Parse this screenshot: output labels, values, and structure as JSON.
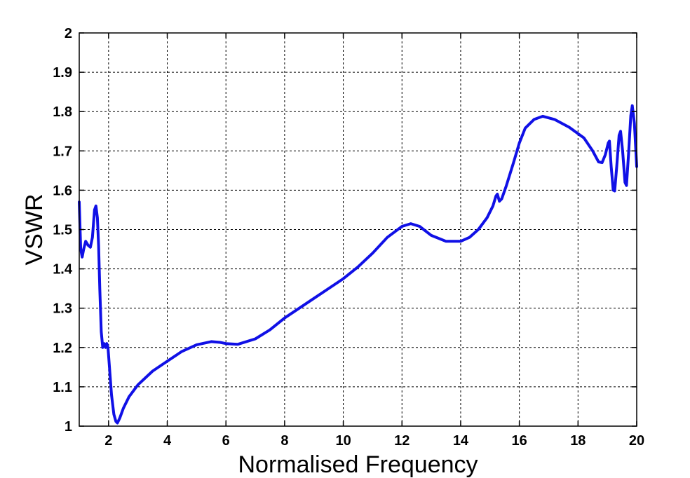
{
  "chart_data": {
    "type": "line",
    "title": "",
    "xlabel": "Normalised Frequency",
    "ylabel": "VSWR",
    "xlim": [
      1,
      20
    ],
    "ylim": [
      1,
      2
    ],
    "xticks": [
      2,
      4,
      6,
      8,
      10,
      12,
      14,
      16,
      18,
      20
    ],
    "yticks": [
      1,
      1.1,
      1.2,
      1.3,
      1.4,
      1.5,
      1.6,
      1.7,
      1.8,
      1.9,
      2
    ],
    "ytick_labels": [
      "1",
      "1.1",
      "1.2",
      "1.3",
      "1.4",
      "1.5",
      "1.6",
      "1.7",
      "1.8",
      "1.9",
      "2"
    ],
    "xtick_labels": [
      "2",
      "4",
      "6",
      "8",
      "10",
      "12",
      "14",
      "16",
      "18",
      "20"
    ],
    "grid": true,
    "line_color": "#1010e6",
    "series": [
      {
        "points": [
          [
            1.0,
            1.57
          ],
          [
            1.05,
            1.45
          ],
          [
            1.1,
            1.43
          ],
          [
            1.15,
            1.45
          ],
          [
            1.22,
            1.47
          ],
          [
            1.3,
            1.46
          ],
          [
            1.38,
            1.455
          ],
          [
            1.45,
            1.48
          ],
          [
            1.52,
            1.55
          ],
          [
            1.57,
            1.56
          ],
          [
            1.62,
            1.53
          ],
          [
            1.66,
            1.46
          ],
          [
            1.7,
            1.35
          ],
          [
            1.75,
            1.24
          ],
          [
            1.8,
            1.2
          ],
          [
            1.85,
            1.21
          ],
          [
            1.9,
            1.2
          ],
          [
            1.94,
            1.21
          ],
          [
            1.98,
            1.2
          ],
          [
            2.03,
            1.15
          ],
          [
            2.1,
            1.08
          ],
          [
            2.18,
            1.03
          ],
          [
            2.25,
            1.012
          ],
          [
            2.3,
            1.008
          ],
          [
            2.38,
            1.02
          ],
          [
            2.5,
            1.045
          ],
          [
            2.7,
            1.075
          ],
          [
            3.0,
            1.105
          ],
          [
            3.5,
            1.14
          ],
          [
            4.0,
            1.165
          ],
          [
            4.5,
            1.19
          ],
          [
            5.0,
            1.207
          ],
          [
            5.5,
            1.215
          ],
          [
            5.8,
            1.213
          ],
          [
            6.0,
            1.21
          ],
          [
            6.4,
            1.208
          ],
          [
            7.0,
            1.222
          ],
          [
            7.5,
            1.245
          ],
          [
            8.0,
            1.275
          ],
          [
            8.5,
            1.3
          ],
          [
            9.0,
            1.325
          ],
          [
            9.5,
            1.35
          ],
          [
            10.0,
            1.375
          ],
          [
            10.5,
            1.405
          ],
          [
            11.0,
            1.44
          ],
          [
            11.5,
            1.48
          ],
          [
            12.0,
            1.508
          ],
          [
            12.3,
            1.515
          ],
          [
            12.6,
            1.508
          ],
          [
            13.0,
            1.485
          ],
          [
            13.5,
            1.47
          ],
          [
            14.0,
            1.47
          ],
          [
            14.3,
            1.48
          ],
          [
            14.6,
            1.5
          ],
          [
            14.9,
            1.53
          ],
          [
            15.1,
            1.56
          ],
          [
            15.2,
            1.585
          ],
          [
            15.25,
            1.59
          ],
          [
            15.32,
            1.572
          ],
          [
            15.4,
            1.578
          ],
          [
            15.55,
            1.61
          ],
          [
            15.8,
            1.67
          ],
          [
            16.0,
            1.72
          ],
          [
            16.2,
            1.758
          ],
          [
            16.5,
            1.78
          ],
          [
            16.8,
            1.788
          ],
          [
            17.2,
            1.78
          ],
          [
            17.7,
            1.76
          ],
          [
            18.2,
            1.733
          ],
          [
            18.5,
            1.7
          ],
          [
            18.7,
            1.672
          ],
          [
            18.82,
            1.67
          ],
          [
            18.93,
            1.69
          ],
          [
            19.03,
            1.72
          ],
          [
            19.07,
            1.725
          ],
          [
            19.13,
            1.66
          ],
          [
            19.2,
            1.6
          ],
          [
            19.25,
            1.598
          ],
          [
            19.32,
            1.66
          ],
          [
            19.4,
            1.74
          ],
          [
            19.45,
            1.75
          ],
          [
            19.52,
            1.7
          ],
          [
            19.6,
            1.62
          ],
          [
            19.65,
            1.612
          ],
          [
            19.72,
            1.69
          ],
          [
            19.8,
            1.79
          ],
          [
            19.85,
            1.815
          ],
          [
            19.92,
            1.77
          ],
          [
            20.0,
            1.66
          ]
        ]
      }
    ]
  }
}
